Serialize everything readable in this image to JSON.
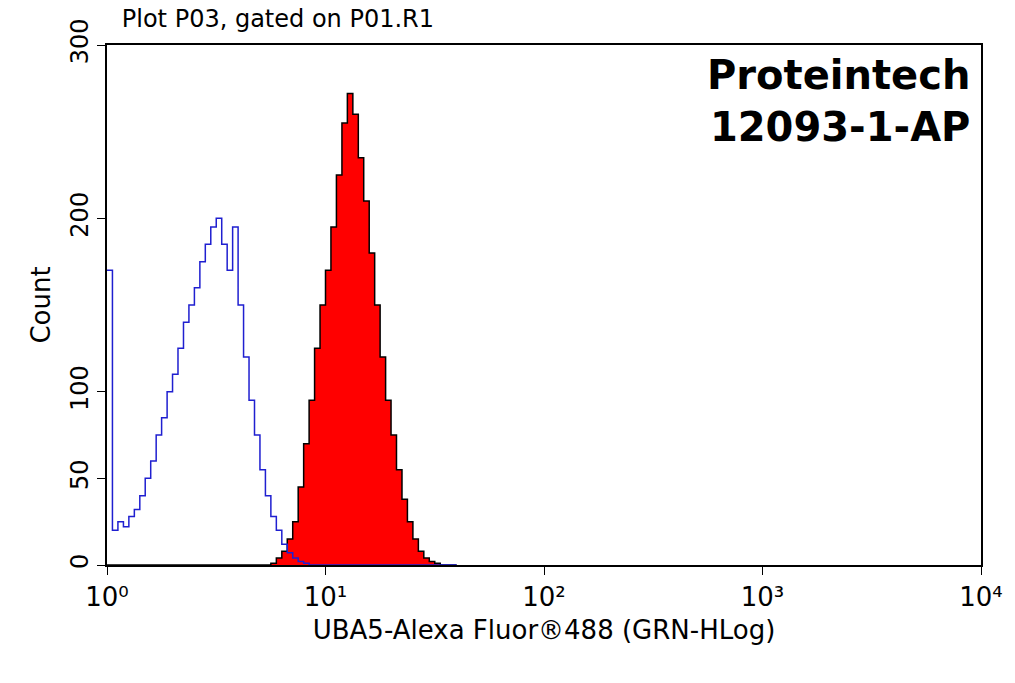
{
  "chart_data": {
    "type": "histogram",
    "title": "Plot P03, gated on P01.R1",
    "annotation": [
      "Proteintech",
      "12093-1-AP"
    ],
    "x_label": "UBA5-Alexa Fluor®488 (GRN-HLog)",
    "y_label": "Count",
    "log": "x",
    "line_style": "step",
    "grid": false,
    "xlim": [
      1,
      10000
    ],
    "xticks": [
      {
        "value": 1,
        "label": "10⁰"
      },
      {
        "value": 10,
        "label": "10¹"
      },
      {
        "value": 100,
        "label": "10²"
      },
      {
        "value": 1000,
        "label": "10³"
      },
      {
        "value": 10000,
        "label": "10⁴"
      }
    ],
    "ylim": [
      0,
      300
    ],
    "yticks": [
      0,
      50,
      100,
      200,
      300
    ],
    "bins": [
      1,
      1.059,
      1.122,
      1.189,
      1.259,
      1.334,
      1.413,
      1.496,
      1.585,
      1.679,
      1.778,
      1.884,
      1.995,
      2.113,
      2.239,
      2.371,
      2.512,
      2.661,
      2.818,
      2.985,
      3.162,
      3.35,
      3.548,
      3.758,
      3.981,
      4.217,
      4.467,
      4.732,
      5.012,
      5.309,
      5.623,
      5.957,
      6.31,
      6.683,
      7.079,
      7.499,
      7.943,
      8.414,
      8.913,
      9.441,
      10,
      10.59,
      11.22,
      11.89,
      12.59,
      13.34,
      14.13,
      14.96,
      15.85,
      16.79,
      17.78,
      18.84,
      19.95,
      21.13,
      22.39,
      23.71,
      25.12,
      26.61,
      28.18,
      29.85,
      31.62,
      33.5,
      35.48,
      37.58,
      39.81
    ],
    "series": [
      {
        "type": "line",
        "color": "#1f1fd0",
        "values": [
          170,
          20,
          25,
          22,
          28,
          32,
          40,
          50,
          60,
          75,
          85,
          100,
          110,
          125,
          140,
          150,
          160,
          175,
          185,
          195,
          200,
          185,
          170,
          195,
          150,
          120,
          95,
          75,
          55,
          40,
          28,
          20,
          12,
          7,
          4,
          2,
          1,
          0,
          0,
          0,
          0,
          0,
          0,
          0,
          0,
          0,
          0,
          0,
          0,
          0,
          0,
          0,
          0,
          0,
          0,
          0,
          0,
          0,
          0,
          0,
          0,
          0,
          0,
          0
        ]
      },
      {
        "type": "area",
        "color": "#ff0000",
        "values": [
          0,
          0,
          0,
          0,
          0,
          0,
          0,
          0,
          0,
          0,
          0,
          0,
          0,
          0,
          0,
          0,
          0,
          0,
          0,
          0,
          0,
          0,
          0,
          0,
          0,
          0,
          0,
          0,
          0,
          0,
          1,
          4,
          8,
          15,
          25,
          45,
          70,
          95,
          125,
          150,
          170,
          195,
          225,
          255,
          272,
          260,
          235,
          210,
          180,
          150,
          120,
          95,
          75,
          55,
          38,
          25,
          15,
          8,
          4,
          2,
          1,
          0,
          0,
          0
        ]
      }
    ]
  }
}
